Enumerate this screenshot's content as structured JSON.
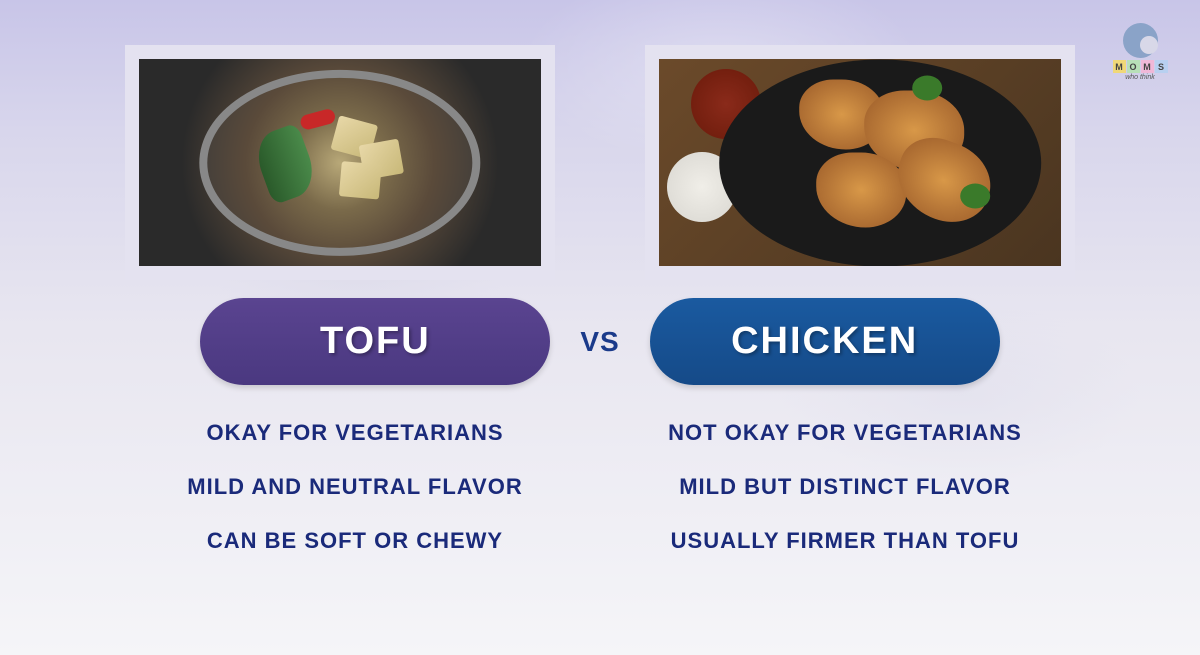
{
  "left": {
    "title": "TOFU",
    "pill_color_top": "#5a4490",
    "pill_color_bottom": "#4a3880",
    "bullets": [
      "OKAY FOR VEGETARIANS",
      "MILD AND NEUTRAL FLAVOR",
      "CAN BE SOFT OR CHEWY"
    ]
  },
  "right": {
    "title": "CHICKEN",
    "pill_color_top": "#1a5aa0",
    "pill_color_bottom": "#154a88",
    "bullets": [
      "NOT OKAY FOR VEGETARIANS",
      "MILD BUT DISTINCT FLAVOR",
      "USUALLY FIRMER THAN TOFU"
    ]
  },
  "vs_label": "VS",
  "bullet_text_color": "#1a2a7a",
  "title_text_color": "#ffffff",
  "vs_text_color": "#1a3a8a",
  "logo": {
    "letters": [
      "M",
      "O",
      "M",
      "S"
    ],
    "subtitle": "who think"
  }
}
